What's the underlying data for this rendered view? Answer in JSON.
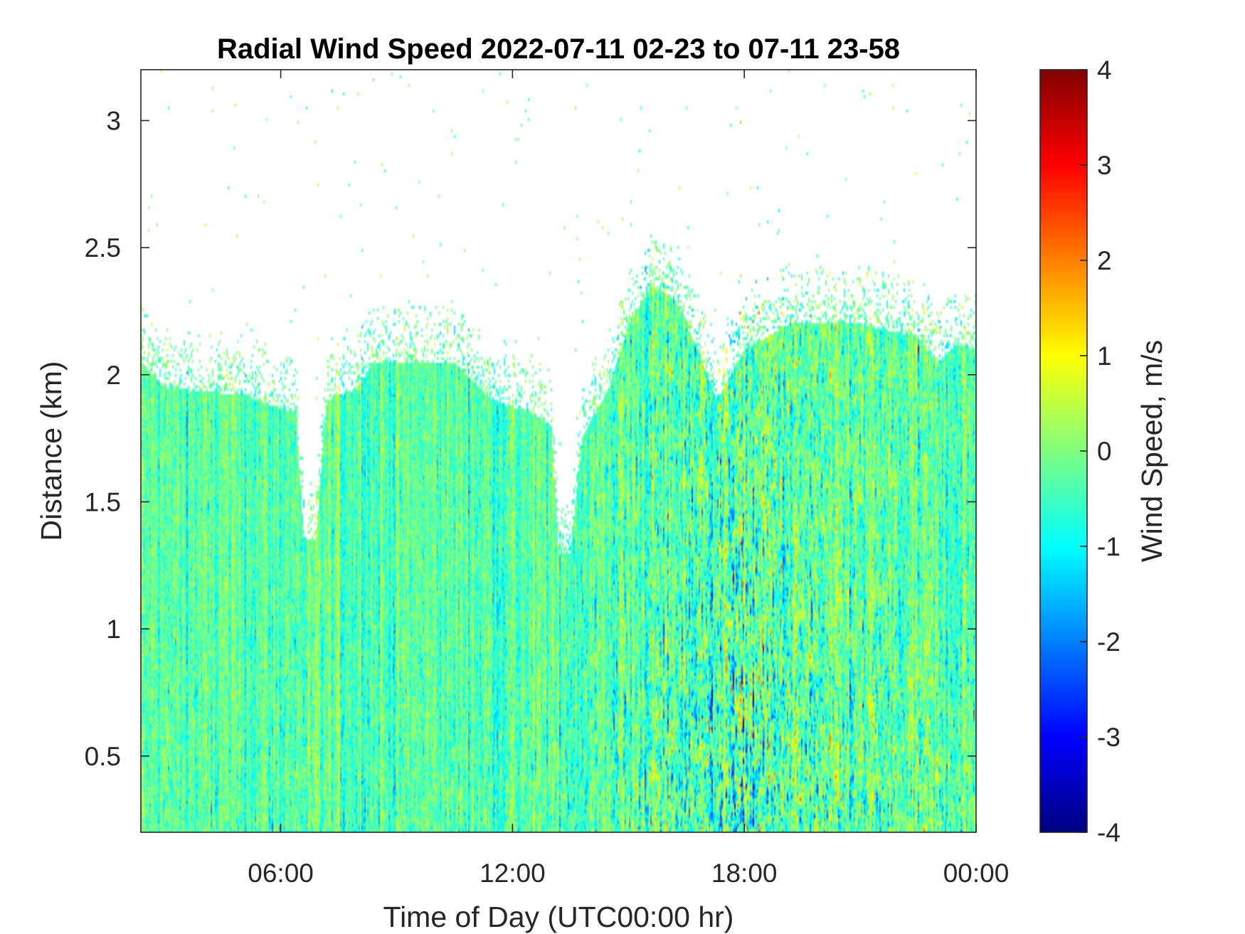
{
  "chart_data": {
    "type": "heatmap",
    "title": "Radial Wind Speed 2022-07-11 02-23 to 07-11 23-58",
    "xlabel": "Time of Day (UTC00:00 hr)",
    "ylabel": "Distance (km)",
    "colorbar_label": "Wind Speed, m/s",
    "x_range_hours": [
      2.38,
      24.0
    ],
    "y_range_km": [
      0.2,
      3.2
    ],
    "color_range": [
      -4,
      4
    ],
    "colormap": "jet",
    "grid": false,
    "x_ticks": [
      {
        "value": 6,
        "label": "06:00"
      },
      {
        "value": 12,
        "label": "12:00"
      },
      {
        "value": 18,
        "label": "18:00"
      },
      {
        "value": 24,
        "label": "00:00"
      }
    ],
    "y_ticks": [
      {
        "value": 0.5,
        "label": "0.5"
      },
      {
        "value": 1,
        "label": "1"
      },
      {
        "value": 1.5,
        "label": "1.5"
      },
      {
        "value": 2,
        "label": "2"
      },
      {
        "value": 2.5,
        "label": "2.5"
      },
      {
        "value": 3,
        "label": "3"
      }
    ],
    "colorbar_ticks": [
      {
        "value": 4,
        "label": "4"
      },
      {
        "value": 3,
        "label": "3"
      },
      {
        "value": 2,
        "label": "2"
      },
      {
        "value": 1,
        "label": "1"
      },
      {
        "value": 0,
        "label": "0"
      },
      {
        "value": -1,
        "label": "-1"
      },
      {
        "value": -2,
        "label": "-2"
      },
      {
        "value": -3,
        "label": "-3"
      },
      {
        "value": -4,
        "label": "-4"
      }
    ],
    "signal_top_km": [
      {
        "t": 2.38,
        "km": 2.05
      },
      {
        "t": 3.0,
        "km": 1.95
      },
      {
        "t": 5.0,
        "km": 1.92
      },
      {
        "t": 6.4,
        "km": 1.85
      },
      {
        "t": 6.6,
        "km": 1.35
      },
      {
        "t": 6.9,
        "km": 1.35
      },
      {
        "t": 7.2,
        "km": 1.9
      },
      {
        "t": 8.0,
        "km": 1.95
      },
      {
        "t": 8.4,
        "km": 2.05
      },
      {
        "t": 10.5,
        "km": 2.05
      },
      {
        "t": 11.5,
        "km": 1.9
      },
      {
        "t": 12.5,
        "km": 1.85
      },
      {
        "t": 13.0,
        "km": 1.8
      },
      {
        "t": 13.2,
        "km": 1.3
      },
      {
        "t": 13.5,
        "km": 1.3
      },
      {
        "t": 13.8,
        "km": 1.75
      },
      {
        "t": 14.5,
        "km": 1.95
      },
      {
        "t": 15.0,
        "km": 2.2
      },
      {
        "t": 15.6,
        "km": 2.35
      },
      {
        "t": 16.2,
        "km": 2.3
      },
      {
        "t": 16.8,
        "km": 2.1
      },
      {
        "t": 17.3,
        "km": 1.9
      },
      {
        "t": 18.0,
        "km": 2.1
      },
      {
        "t": 19.2,
        "km": 2.2
      },
      {
        "t": 21.0,
        "km": 2.2
      },
      {
        "t": 22.5,
        "km": 2.15
      },
      {
        "t": 23.0,
        "km": 2.05
      },
      {
        "t": 23.5,
        "km": 2.12
      },
      {
        "t": 24.0,
        "km": 2.1
      }
    ],
    "variability_ms": [
      {
        "t": 2.38,
        "std": 0.5
      },
      {
        "t": 13.0,
        "std": 0.55
      },
      {
        "t": 14.3,
        "std": 0.85
      },
      {
        "t": 16.0,
        "std": 1.2
      },
      {
        "t": 17.5,
        "std": 1.5
      },
      {
        "t": 18.4,
        "std": 1.7
      },
      {
        "t": 19.5,
        "std": 1.3
      },
      {
        "t": 21.0,
        "std": 1.1
      },
      {
        "t": 24.0,
        "std": 0.85
      }
    ],
    "mean_ms": -0.3
  }
}
